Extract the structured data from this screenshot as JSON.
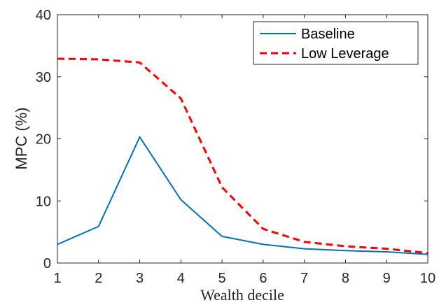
{
  "chart_data": {
    "type": "line",
    "title": "",
    "xlabel": "Wealth decile",
    "ylabel": "MPC (%)",
    "x": [
      1,
      2,
      3,
      4,
      5,
      6,
      7,
      8,
      9,
      10
    ],
    "xlim": [
      1,
      10
    ],
    "ylim": [
      0,
      40
    ],
    "xticks": [
      "1",
      "2",
      "3",
      "4",
      "5",
      "6",
      "7",
      "8",
      "9",
      "10"
    ],
    "yticks": [
      "0",
      "10",
      "20",
      "30",
      "40"
    ],
    "grid": false,
    "legend_position": "top-right",
    "series": [
      {
        "name": "Baseline",
        "color": "#0072BD",
        "style": "solid",
        "values": [
          3.0,
          5.9,
          20.3,
          10.2,
          4.3,
          3.0,
          2.3,
          2.0,
          1.8,
          1.4
        ]
      },
      {
        "name": "Low Leverage",
        "color": "#FF0000",
        "style": "dashed",
        "values": [
          32.9,
          32.8,
          32.3,
          26.5,
          12.2,
          5.5,
          3.4,
          2.7,
          2.3,
          1.6
        ]
      }
    ]
  }
}
